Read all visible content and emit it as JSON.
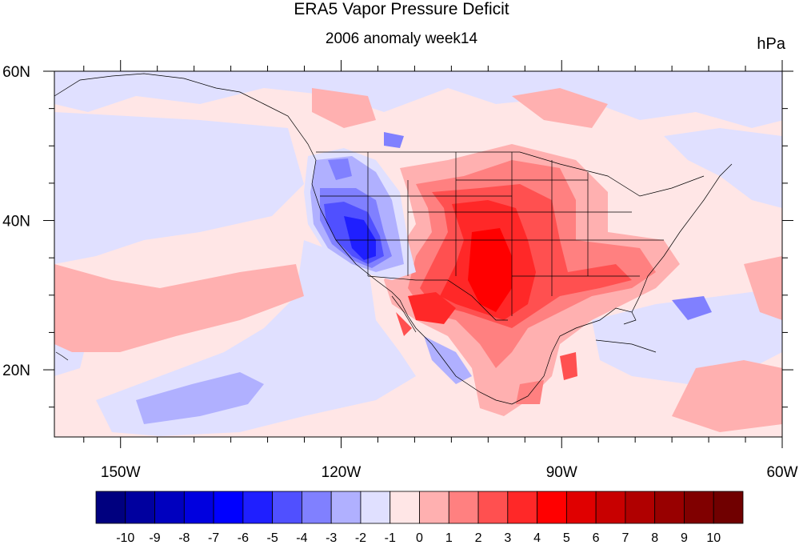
{
  "title": "ERA5 Vapor Pressure Deficit",
  "subtitle": "2006 anomaly week14",
  "units": "hPa",
  "axes": {
    "lon_ticks": [
      {
        "value": -150,
        "label": "150W"
      },
      {
        "value": -120,
        "label": "120W"
      },
      {
        "value": -90,
        "label": "90W"
      },
      {
        "value": -60,
        "label": "60W"
      }
    ],
    "lat_ticks": [
      {
        "value": 60,
        "label": "60N"
      },
      {
        "value": 40,
        "label": "40N"
      },
      {
        "value": 20,
        "label": "20N"
      }
    ],
    "lon_range": [
      -159,
      -60
    ],
    "lat_range": [
      11,
      60
    ]
  },
  "colorbar": {
    "levels": [
      "-10",
      "-9",
      "-8",
      "-7",
      "-6",
      "-5",
      "-4",
      "-3",
      "-2",
      "-1",
      "0",
      "1",
      "2",
      "3",
      "4",
      "5",
      "6",
      "7",
      "8",
      "9",
      "10"
    ],
    "colors": [
      "#00007f",
      "#00009f",
      "#0000bf",
      "#0000df",
      "#0000ff",
      "#1f1fff",
      "#5050ff",
      "#8080ff",
      "#b0b0ff",
      "#e0e0ff",
      "#ffe6e6",
      "#ffb0b0",
      "#ff8080",
      "#ff5050",
      "#ff2828",
      "#ff0000",
      "#e00000",
      "#c80000",
      "#b00000",
      "#980000",
      "#800000",
      "#700000"
    ]
  }
}
